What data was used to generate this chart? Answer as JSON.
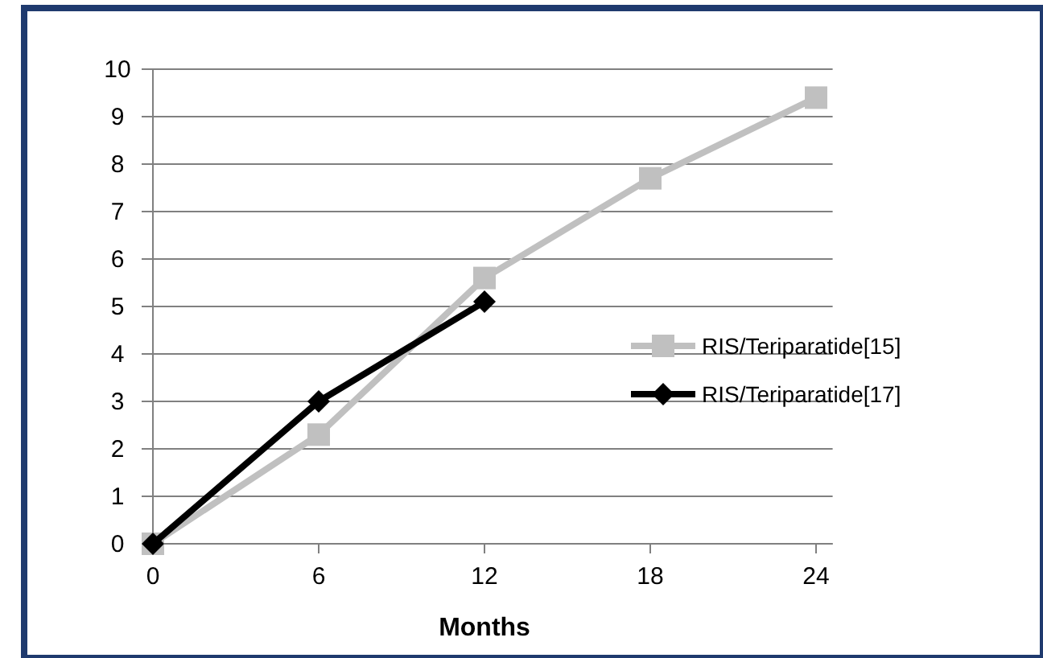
{
  "chart_data": {
    "type": "line",
    "xlabel": "Months",
    "x": [
      0,
      6,
      12,
      18,
      24
    ],
    "series": [
      {
        "name": "RIS/Teriparatide[15]",
        "color": "#c0c0c0",
        "marker": "square",
        "values": [
          0,
          2.3,
          5.6,
          7.7,
          9.4
        ]
      },
      {
        "name": "RIS/Teriparatide[17]",
        "color": "#000000",
        "marker": "diamond",
        "x": [
          0,
          6,
          12
        ],
        "values": [
          0,
          3,
          5.1
        ]
      }
    ],
    "xlim": [
      0,
      24.6
    ],
    "xticks": [
      0,
      6,
      12,
      18,
      24
    ],
    "ylim": [
      0,
      10
    ],
    "yticks": [
      0,
      1,
      2,
      3,
      4,
      5,
      6,
      7,
      8,
      9,
      10
    ],
    "grid": "y",
    "legend": "right"
  }
}
